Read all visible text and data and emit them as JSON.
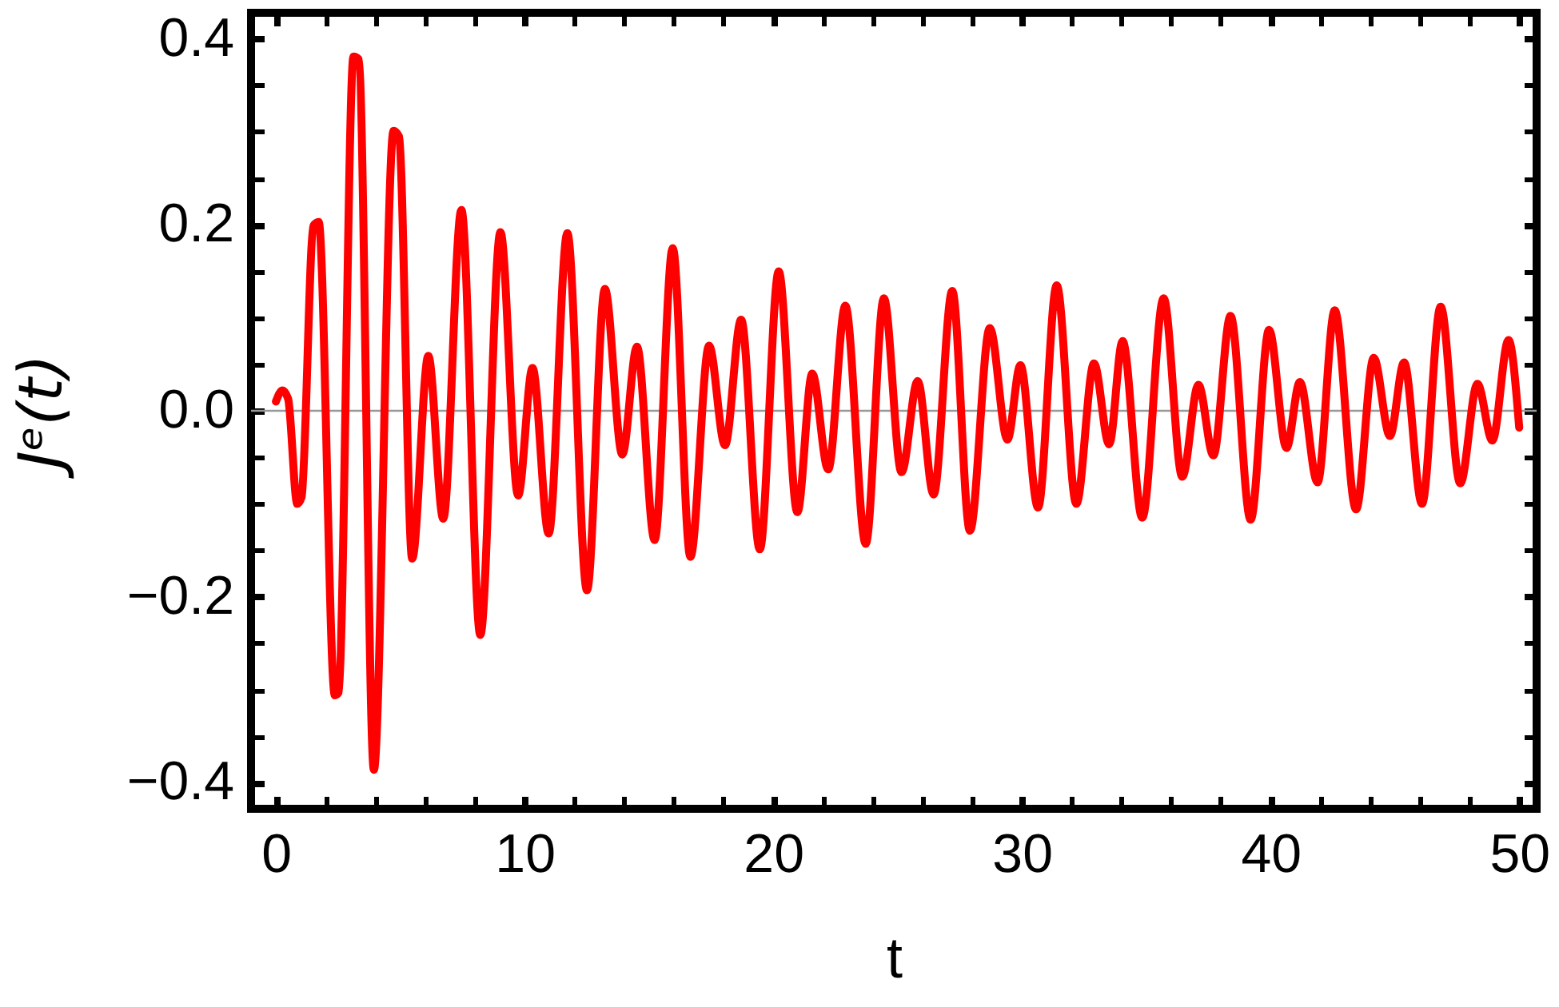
{
  "chart_data": {
    "type": "line",
    "xlabel": "t",
    "ylabel": "Jᵉ(t)",
    "x": [
      0,
      0.26,
      0.49,
      0.86,
      1.03,
      1.51,
      1.72,
      2.37,
      2.52,
      3.12,
      3.33,
      3.94,
      4.73,
      4.95,
      5.48,
      6.13,
      6.73,
      7.46,
      8.22,
      9.03,
      9.74,
      10.32,
      10.97,
      11.72,
      12.51,
      13.23,
      13.93,
      14.52,
      15.23,
      15.96,
      16.67,
      17.42,
      18.06,
      18.71,
      19.46,
      20.22,
      20.97,
      21.57,
      22.21,
      22.9,
      23.72,
      24.45,
      25.16,
      25.81,
      26.45,
      27.2,
      27.91,
      28.71,
      29.42,
      29.94,
      30.65,
      31.4,
      32.19,
      32.9,
      33.51,
      34.05,
      34.84,
      35.7,
      36.45,
      37.1,
      37.7,
      38.39,
      39.2,
      39.94,
      40.64,
      41.18,
      41.89,
      42.58,
      43.44,
      44.15,
      44.8,
      45.37,
      46.09,
      46.84,
      47.63,
      48.32,
      48.92,
      49.57,
      50
    ],
    "series": [
      {
        "color": "#ff0000",
        "values": [
          0.01,
          0.022,
          0.013,
          -0.1,
          -0.093,
          0.199,
          0.203,
          -0.306,
          -0.303,
          0.381,
          0.378,
          -0.386,
          0.301,
          0.295,
          -0.159,
          0.059,
          -0.116,
          0.216,
          -0.241,
          0.192,
          -0.091,
          0.046,
          -0.132,
          0.191,
          -0.193,
          0.131,
          -0.047,
          0.069,
          -0.139,
          0.175,
          -0.157,
          0.07,
          -0.037,
          0.098,
          -0.149,
          0.15,
          -0.109,
          0.04,
          -0.063,
          0.113,
          -0.143,
          0.121,
          -0.066,
          0.032,
          -0.09,
          0.129,
          -0.129,
          0.089,
          -0.031,
          0.049,
          -0.104,
          0.135,
          -0.1,
          0.051,
          -0.036,
          0.075,
          -0.115,
          0.121,
          -0.071,
          0.028,
          -0.048,
          0.102,
          -0.117,
          0.087,
          -0.04,
          0.031,
          -0.077,
          0.108,
          -0.106,
          0.057,
          -0.027,
          0.052,
          -0.1,
          0.112,
          -0.078,
          0.029,
          -0.032,
          0.076,
          -0.018
        ]
      }
    ],
    "xlim": [
      -1,
      50.7
    ],
    "ylim": [
      -0.428,
      0.428
    ],
    "xticks": [
      0,
      {
        "value": 2,
        "label": null
      },
      {
        "value": 4,
        "label": null
      },
      {
        "value": 6,
        "label": null
      },
      {
        "value": 8,
        "label": null
      },
      10,
      {
        "value": 12,
        "label": null
      },
      {
        "value": 14,
        "label": null
      },
      {
        "value": 16,
        "label": null
      },
      {
        "value": 18,
        "label": null
      },
      20,
      {
        "value": 22,
        "label": null
      },
      {
        "value": 24,
        "label": null
      },
      {
        "value": 26,
        "label": null
      },
      {
        "value": 28,
        "label": null
      },
      30,
      {
        "value": 32,
        "label": null
      },
      {
        "value": 34,
        "label": null
      },
      {
        "value": 36,
        "label": null
      },
      {
        "value": 38,
        "label": null
      },
      40,
      {
        "value": 42,
        "label": null
      },
      {
        "value": 44,
        "label": null
      },
      {
        "value": 46,
        "label": null
      },
      {
        "value": 48,
        "label": null
      },
      50
    ],
    "yticks": [
      {
        "value": -0.4,
        "label": "−0.4"
      },
      {
        "value": -0.35,
        "label": null
      },
      {
        "value": -0.3,
        "label": null
      },
      {
        "value": -0.25,
        "label": null
      },
      {
        "value": -0.2,
        "label": "−0.2"
      },
      {
        "value": -0.15,
        "label": null
      },
      {
        "value": -0.1,
        "label": null
      },
      {
        "value": -0.05,
        "label": null
      },
      {
        "value": 0,
        "label": "0.0"
      },
      {
        "value": 0.05,
        "label": null
      },
      {
        "value": 0.1,
        "label": null
      },
      {
        "value": 0.15,
        "label": null
      },
      0.2,
      {
        "value": 0.25,
        "label": null
      },
      {
        "value": 0.3,
        "label": null
      },
      {
        "value": 0.35,
        "label": null
      },
      0.4
    ],
    "ref_lines": [
      {
        "axis": "y",
        "value": 0,
        "color": "#999999"
      }
    ]
  }
}
